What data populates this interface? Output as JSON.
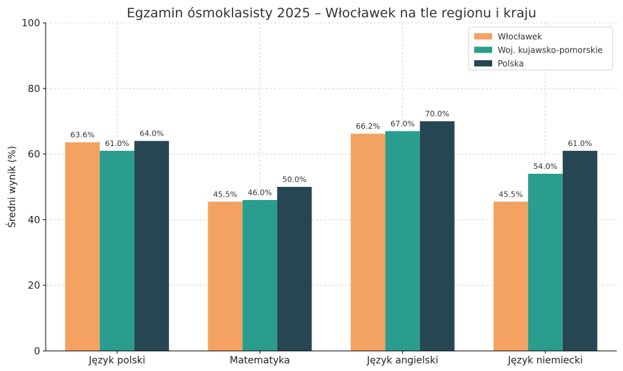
{
  "chart_data": {
    "type": "bar",
    "title": "Egzamin ósmoklasisty 2025 – Włocławek na tle regionu i kraju",
    "xlabel": "",
    "ylabel": "Średni wynik (%)",
    "ylim": [
      0,
      100
    ],
    "yticks": [
      0,
      20,
      40,
      60,
      80,
      100
    ],
    "categories": [
      "Język polski",
      "Matematyka",
      "Język angielski",
      "Język niemiecki"
    ],
    "series": [
      {
        "name": "Włocławek",
        "color": "#F4A261",
        "values": [
          63.6,
          45.5,
          66.2,
          45.5
        ],
        "labels": [
          "63.6%",
          "45.5%",
          "66.2%",
          "45.5%"
        ]
      },
      {
        "name": "Woj. kujawsko-pomorskie",
        "color": "#2A9D8F",
        "values": [
          61.0,
          46.0,
          67.0,
          54.0
        ],
        "labels": [
          "61.0%",
          "46.0%",
          "67.0%",
          "54.0%"
        ]
      },
      {
        "name": "Polska",
        "color": "#264653",
        "values": [
          64.0,
          50.0,
          70.0,
          61.0
        ],
        "labels": [
          "64.0%",
          "50.0%",
          "70.0%",
          "61.0%"
        ]
      }
    ],
    "grid": true,
    "legend_position": "top-right"
  }
}
